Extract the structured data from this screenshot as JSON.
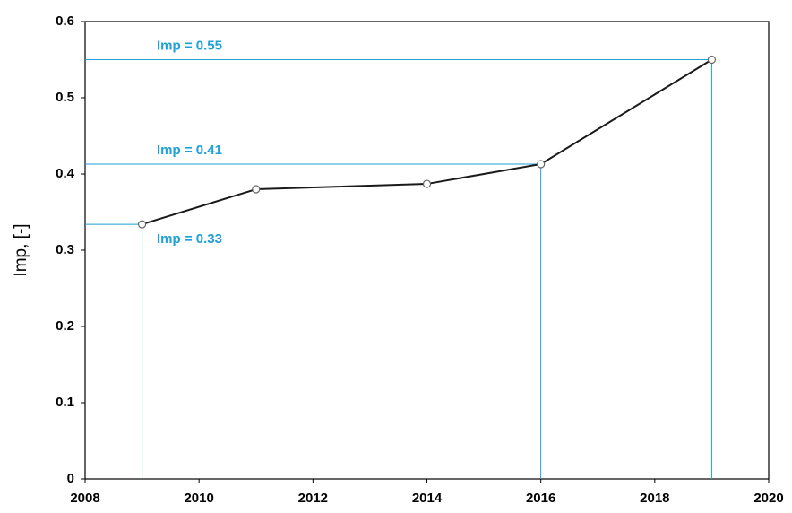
{
  "chart_data": {
    "type": "line",
    "y_label": "Imp, [-]",
    "x": [
      2009,
      2011,
      2014,
      2016,
      2019
    ],
    "series": [
      {
        "color": "#1a1a1a",
        "values": [
          0.334,
          0.38,
          0.387,
          0.413,
          0.55
        ]
      }
    ],
    "xlim": [
      2008,
      2020
    ],
    "xticks": [
      2008,
      2010,
      2012,
      2014,
      2016,
      2018,
      2020
    ],
    "ylim": [
      0,
      0.6
    ],
    "yticks": [
      0,
      0.1,
      0.2,
      0.3,
      0.4,
      0.5,
      0.6
    ],
    "annotations": [
      {
        "label": "Imp = 0.55",
        "x": 2019,
        "y": 0.55
      },
      {
        "label": "Imp = 0.41",
        "x": 2016,
        "y": 0.413
      },
      {
        "label": "Imp = 0.33",
        "x": 2009,
        "y": 0.334
      }
    ],
    "annotation_color": "#1ea0d8"
  }
}
